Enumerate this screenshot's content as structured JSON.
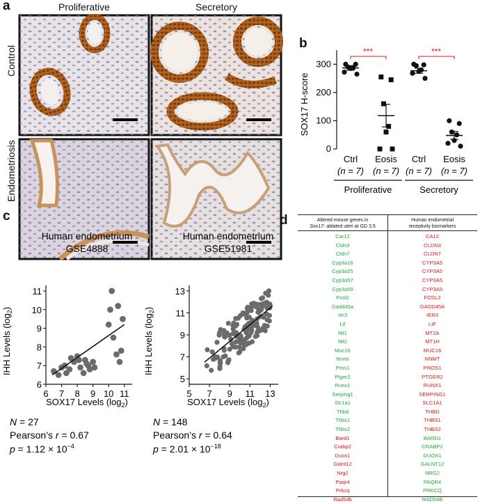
{
  "panel_a": {
    "label": "a",
    "col_titles": [
      "Proliferative",
      "Secretory"
    ],
    "row_titles": [
      "Control",
      "Endometriosis"
    ]
  },
  "panel_b": {
    "label": "b",
    "ylabel": "SOX17 H-score",
    "yticks": [
      "0",
      "100",
      "200",
      "300"
    ],
    "groups": [
      {
        "name": "Ctrl",
        "n": "(n = 7)",
        "mean": 287,
        "sem": 8,
        "points": [
          300,
          300,
          290,
          288,
          285,
          272,
          265
        ],
        "marker": "circle"
      },
      {
        "name": "Eosis",
        "n": "(n = 7)",
        "mean": 118,
        "sem": 40,
        "points": [
          255,
          245,
          160,
          80,
          60,
          0,
          0
        ],
        "marker": "square"
      },
      {
        "name": "Ctrl",
        "n": "(n = 7)",
        "mean": 277,
        "sem": 9,
        "points": [
          300,
          298,
          295,
          280,
          275,
          268,
          250
        ],
        "marker": "circle"
      },
      {
        "name": "Eosis",
        "n": "(n = 7)",
        "mean": 48,
        "sem": 14,
        "points": [
          100,
          90,
          60,
          50,
          30,
          20,
          10
        ],
        "marker": "circle"
      }
    ],
    "significance": [
      "***",
      "***"
    ],
    "phases": [
      "Proliferative",
      "Secretory"
    ],
    "colors": {
      "sig": "#e0161b",
      "marker": "#111111"
    }
  },
  "panel_c": {
    "label": "c",
    "chart_data": [
      {
        "type": "scatter",
        "title": "Human endometrium",
        "subtitle": "GSE4888",
        "xlabel": "SOX17 Levels (log",
        "ylabel": "IHH Levels (log",
        "xlim": [
          6,
          11.5
        ],
        "ylim": [
          6,
          11.3
        ],
        "xticks": [
          6,
          7,
          8,
          9,
          10,
          11
        ],
        "yticks": [
          6,
          7,
          8,
          9,
          10,
          11
        ],
        "points": [
          [
            6.5,
            6.7
          ],
          [
            6.8,
            6.5
          ],
          [
            7.0,
            6.9
          ],
          [
            7.2,
            7.0
          ],
          [
            7.3,
            6.6
          ],
          [
            7.5,
            6.8
          ],
          [
            7.6,
            7.4
          ],
          [
            7.8,
            7.2
          ],
          [
            8.0,
            7.5
          ],
          [
            8.1,
            7.3
          ],
          [
            8.2,
            6.9
          ],
          [
            8.4,
            6.6
          ],
          [
            8.5,
            7.3
          ],
          [
            8.6,
            7.1
          ],
          [
            8.7,
            7.0
          ],
          [
            8.8,
            6.8
          ],
          [
            9.0,
            7.2
          ],
          [
            9.1,
            6.9
          ],
          [
            10.0,
            9.2
          ],
          [
            10.1,
            10.0
          ],
          [
            10.2,
            11.0
          ],
          [
            10.3,
            8.5
          ],
          [
            10.5,
            7.6
          ],
          [
            10.6,
            10.2
          ],
          [
            10.7,
            7.2
          ],
          [
            10.9,
            9.5
          ],
          [
            10.8,
            7.8
          ]
        ],
        "fit": [
          [
            6.4,
            6.5
          ],
          [
            11.0,
            9.2
          ]
        ],
        "stats": {
          "N": "27",
          "r": "0.67",
          "p": "1.12 × 10"
        },
        "p_exp": "−4"
      },
      {
        "type": "scatter",
        "title": "Human endometrium",
        "subtitle": "GSE51981",
        "xlabel": "SOX17 Levels (log",
        "ylabel": "IHH Levels (log",
        "xlim": [
          5,
          13.8
        ],
        "ylim": [
          4.5,
          13.5
        ],
        "xticks": [
          5,
          7,
          9,
          11,
          13
        ],
        "yticks": [
          5,
          7,
          9,
          11,
          13
        ],
        "stats": {
          "N": "148",
          "r": "0.64",
          "p": "2.01 × 10"
        },
        "p_exp": "−18",
        "fit": [
          [
            6.5,
            6.5
          ],
          [
            13.2,
            11.6
          ]
        ]
      }
    ]
  },
  "panel_d": {
    "label": "d",
    "headers": {
      "left_line1": "Altered mouse genes in",
      "left_line2_italic": "Sox17",
      "left_line2_rest": "- ablated uteri at GD 3.5",
      "right_line1": "Human endometrial",
      "right_line2": "receptivity biomarkers"
    },
    "mouse_genes": [
      {
        "name": "Car12",
        "color": "g"
      },
      {
        "name": "Cldn3",
        "color": "g"
      },
      {
        "name": "Cldn7",
        "color": "g"
      },
      {
        "name": "Cyp3a16",
        "color": "g"
      },
      {
        "name": "Cyp3a25",
        "color": "g"
      },
      {
        "name": "Cyp3a57",
        "color": "g"
      },
      {
        "name": "Cyp3a59",
        "color": "g"
      },
      {
        "name": "Fosl2",
        "color": "g"
      },
      {
        "name": "Gadd45a",
        "color": "g"
      },
      {
        "name": "Ier3",
        "color": "g"
      },
      {
        "name": "Lif",
        "color": "g"
      },
      {
        "name": "Mt1",
        "color": "g"
      },
      {
        "name": "Mt2",
        "color": "g"
      },
      {
        "name": "Muc16",
        "color": "g"
      },
      {
        "name": "Nnmt",
        "color": "g"
      },
      {
        "name": "Pros1",
        "color": "g"
      },
      {
        "name": "Ptger2",
        "color": "g"
      },
      {
        "name": "Runx1",
        "color": "g"
      },
      {
        "name": "Serping1",
        "color": "g"
      },
      {
        "name": "Slc1a1",
        "color": "g"
      },
      {
        "name": "Thbd",
        "color": "g"
      },
      {
        "name": "Thbs1",
        "color": "g"
      },
      {
        "name": "Thbs2",
        "color": "g"
      },
      {
        "name": "Bard1",
        "color": "r"
      },
      {
        "name": "Crabp2",
        "color": "r"
      },
      {
        "name": "Duox1",
        "color": "r"
      },
      {
        "name": "Galnt12",
        "color": "r"
      },
      {
        "name": "Nrg2",
        "color": "r"
      },
      {
        "name": "Paqr4",
        "color": "r"
      },
      {
        "name": "Prkcq",
        "color": "r"
      },
      {
        "name": "Rad54b",
        "color": "r"
      }
    ],
    "human_genes": [
      {
        "name": "CA12",
        "color": "r"
      },
      {
        "name": "CLDN3",
        "color": "r"
      },
      {
        "name": "CLDN7",
        "color": "r"
      },
      {
        "name": "CYP3A5",
        "color": "r"
      },
      {
        "name": "CYP3A5",
        "color": "r"
      },
      {
        "name": "CYP3A5",
        "color": "r"
      },
      {
        "name": "CYP3A5",
        "color": "r"
      },
      {
        "name": "FOSL2",
        "color": "r"
      },
      {
        "name": "GADD45A",
        "color": "r"
      },
      {
        "name": "IER3",
        "color": "r"
      },
      {
        "name": "LIF",
        "color": "r"
      },
      {
        "name": "MT2A",
        "color": "r"
      },
      {
        "name": "MT1H",
        "color": "r"
      },
      {
        "name": "MUC16",
        "color": "r"
      },
      {
        "name": "NNMT",
        "color": "r"
      },
      {
        "name": "PROS1",
        "color": "r"
      },
      {
        "name": "PTGER2",
        "color": "r"
      },
      {
        "name": "RUNX1",
        "color": "r"
      },
      {
        "name": "SERPING1",
        "color": "r"
      },
      {
        "name": "SLC1A1",
        "color": "r"
      },
      {
        "name": "THBD",
        "color": "r"
      },
      {
        "name": "THBS1",
        "color": "r"
      },
      {
        "name": "THBS2",
        "color": "r"
      },
      {
        "name": "BARD1",
        "color": "g"
      },
      {
        "name": "CRABP2",
        "color": "g"
      },
      {
        "name": "DUOX1",
        "color": "g"
      },
      {
        "name": "GALNT12",
        "color": "g"
      },
      {
        "name": "NRG2",
        "color": "g"
      },
      {
        "name": "PAQR4",
        "color": "g"
      },
      {
        "name": "PRKCQ",
        "color": "g"
      },
      {
        "name": "RAD54B",
        "color": "g"
      }
    ],
    "colors": {
      "g": "#1faa3a",
      "r": "#e0161b"
    }
  }
}
